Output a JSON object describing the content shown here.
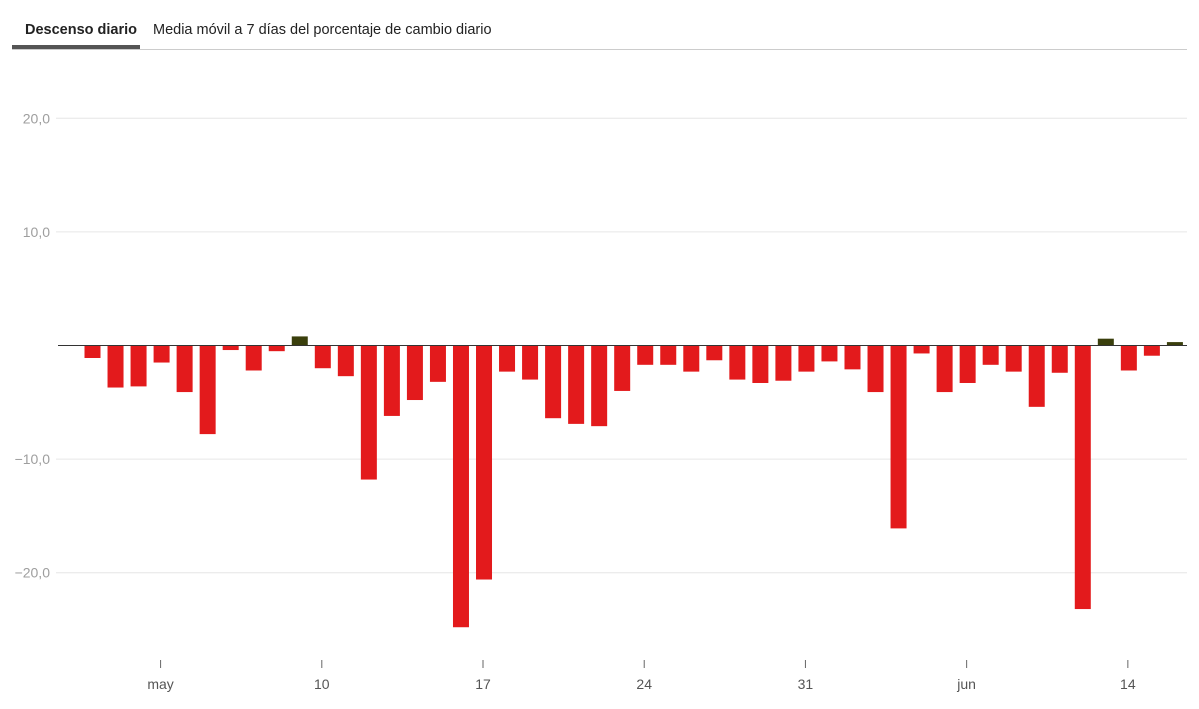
{
  "tabs": [
    {
      "label": "Descenso diario",
      "active": true
    },
    {
      "label": "Media móvil a 7 días del porcentaje de cambio diario",
      "active": false
    }
  ],
  "colors": {
    "negative": "#e31a1c",
    "positive": "#3a3f0c",
    "grid": "#e6e6e6",
    "zero": "#333333"
  },
  "chart_data": {
    "type": "bar",
    "title": "Descenso diario",
    "xlabel": "",
    "ylabel": "",
    "ylim": [
      -26,
      24
    ],
    "yticks": [
      {
        "value": 20,
        "label": "20,0"
      },
      {
        "value": 10,
        "label": "10,0"
      },
      {
        "value": -10,
        "label": "−10,0"
      },
      {
        "value": -20,
        "label": "−20,0"
      }
    ],
    "xticks": [
      {
        "index": 3,
        "label": "may"
      },
      {
        "index": 10,
        "label": "10"
      },
      {
        "index": 17,
        "label": "17"
      },
      {
        "index": 24,
        "label": "24"
      },
      {
        "index": 31,
        "label": "31"
      },
      {
        "index": 38,
        "label": "jun"
      },
      {
        "index": 45,
        "label": "14"
      }
    ],
    "values": [
      -1.1,
      -3.7,
      -3.6,
      -1.5,
      -4.1,
      -7.8,
      -0.4,
      -2.2,
      -0.5,
      0.8,
      -2.0,
      -2.7,
      -11.8,
      -6.2,
      -4.8,
      -3.2,
      -24.8,
      -20.6,
      -2.3,
      -3.0,
      -6.4,
      -6.9,
      -7.1,
      -4.0,
      -1.7,
      -1.7,
      -2.3,
      -1.3,
      -3.0,
      -3.3,
      -3.1,
      -2.3,
      -1.4,
      -2.1,
      -4.1,
      -16.1,
      -0.7,
      -4.1,
      -3.3,
      -1.7,
      -2.3,
      -5.4,
      -2.4,
      -23.2,
      0.6,
      -2.2,
      -0.9,
      0.3
    ]
  }
}
